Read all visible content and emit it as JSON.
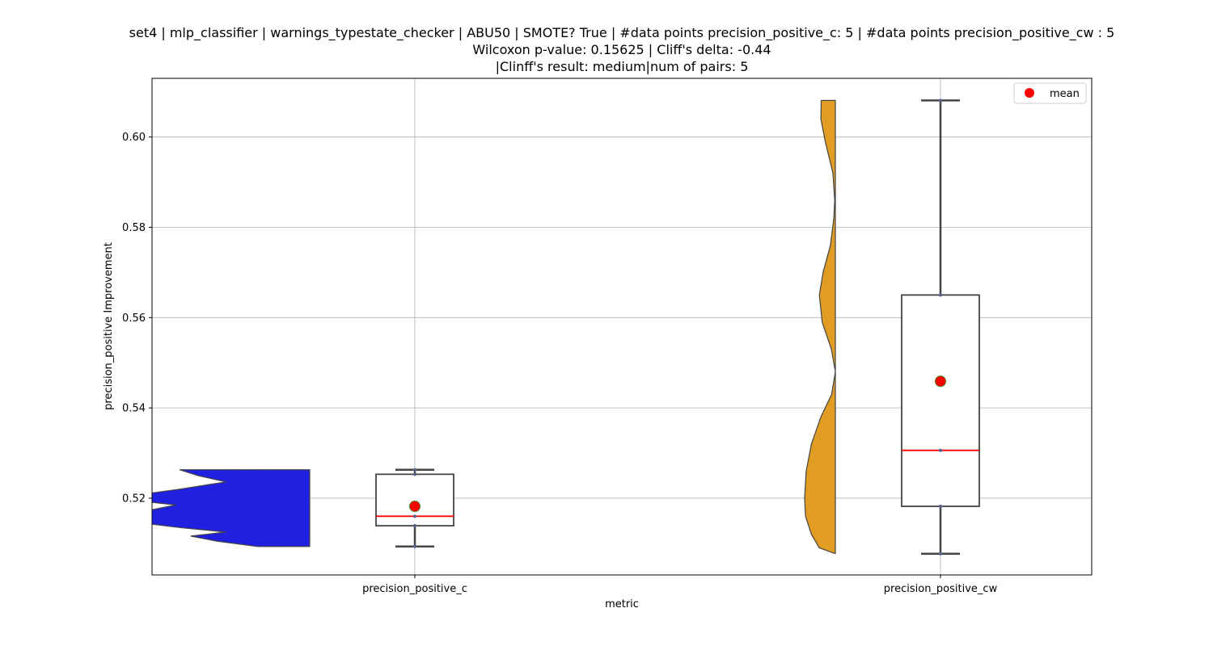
{
  "title_lines": [
    "set4 | mlp_classifier | warnings_typestate_checker | ABU50 | SMOTE? True | #data points precision_positive_c: 5 | #data points precision_positive_cw : 5",
    "Wilcoxon p-value: 0.15625 | Cliff's delta: -0.44",
    "|Clinff's result: medium|num of pairs: 5"
  ],
  "chart_data": {
    "type": "violin+box",
    "xlabel": "metric",
    "ylabel": "precision_positive Improvement",
    "categories": [
      "precision_positive_c",
      "precision_positive_cw"
    ],
    "ylim": [
      0.503,
      0.613
    ],
    "yticks": [
      0.52,
      0.54,
      0.56,
      0.58,
      0.6
    ],
    "ytick_labels": [
      "0.52",
      "0.54",
      "0.56",
      "0.58",
      "0.60"
    ],
    "grid": true,
    "legend": {
      "position": "top-right",
      "entries": [
        {
          "label": "mean",
          "marker": "red circle"
        }
      ]
    },
    "series": [
      {
        "category": "precision_positive_c",
        "violin_color": "#2020e0",
        "points": [
          0.5093,
          0.5139,
          0.516,
          0.5253,
          0.5263
        ],
        "box": {
          "min": 0.5093,
          "q1": 0.5139,
          "median": 0.516,
          "q3": 0.5253,
          "max": 0.5263
        },
        "mean": 0.5182,
        "density": [
          [
            0.5093,
            0.28
          ],
          [
            0.5105,
            0.5
          ],
          [
            0.5116,
            0.64
          ],
          [
            0.5125,
            0.45
          ],
          [
            0.5135,
            0.7
          ],
          [
            0.515,
            1.0
          ],
          [
            0.517,
            0.9
          ],
          [
            0.5185,
            0.72
          ],
          [
            0.5197,
            0.99
          ],
          [
            0.5207,
            0.93
          ],
          [
            0.522,
            0.7
          ],
          [
            0.5236,
            0.45
          ],
          [
            0.525,
            0.6
          ],
          [
            0.5263,
            0.7
          ]
        ]
      },
      {
        "category": "precision_positive_cw",
        "violin_color": "#e09c23",
        "points": [
          0.5077,
          0.5182,
          0.5306,
          0.565,
          0.6081
        ],
        "box": {
          "min": 0.5077,
          "q1": 0.5182,
          "median": 0.5306,
          "q3": 0.565,
          "max": 0.6081
        },
        "mean": 0.5459,
        "density": [
          [
            0.5077,
            0.0
          ],
          [
            0.509,
            0.52
          ],
          [
            0.512,
            0.78
          ],
          [
            0.516,
            0.97
          ],
          [
            0.52,
            1.0
          ],
          [
            0.526,
            0.95
          ],
          [
            0.532,
            0.78
          ],
          [
            0.538,
            0.47
          ],
          [
            0.543,
            0.12
          ],
          [
            0.548,
            0.0
          ],
          [
            0.553,
            0.13
          ],
          [
            0.559,
            0.43
          ],
          [
            0.565,
            0.52
          ],
          [
            0.57,
            0.4
          ],
          [
            0.576,
            0.16
          ],
          [
            0.582,
            0.05
          ],
          [
            0.586,
            0.02
          ],
          [
            0.592,
            0.08
          ],
          [
            0.599,
            0.33
          ],
          [
            0.604,
            0.47
          ],
          [
            0.6081,
            0.46
          ]
        ]
      }
    ],
    "colors": {
      "box_edge": "#444444",
      "median": "#ff0000",
      "mean_fill": "#ff0000",
      "mean_edge": "#4a7f1f",
      "grid": "#b0b0b0"
    }
  }
}
